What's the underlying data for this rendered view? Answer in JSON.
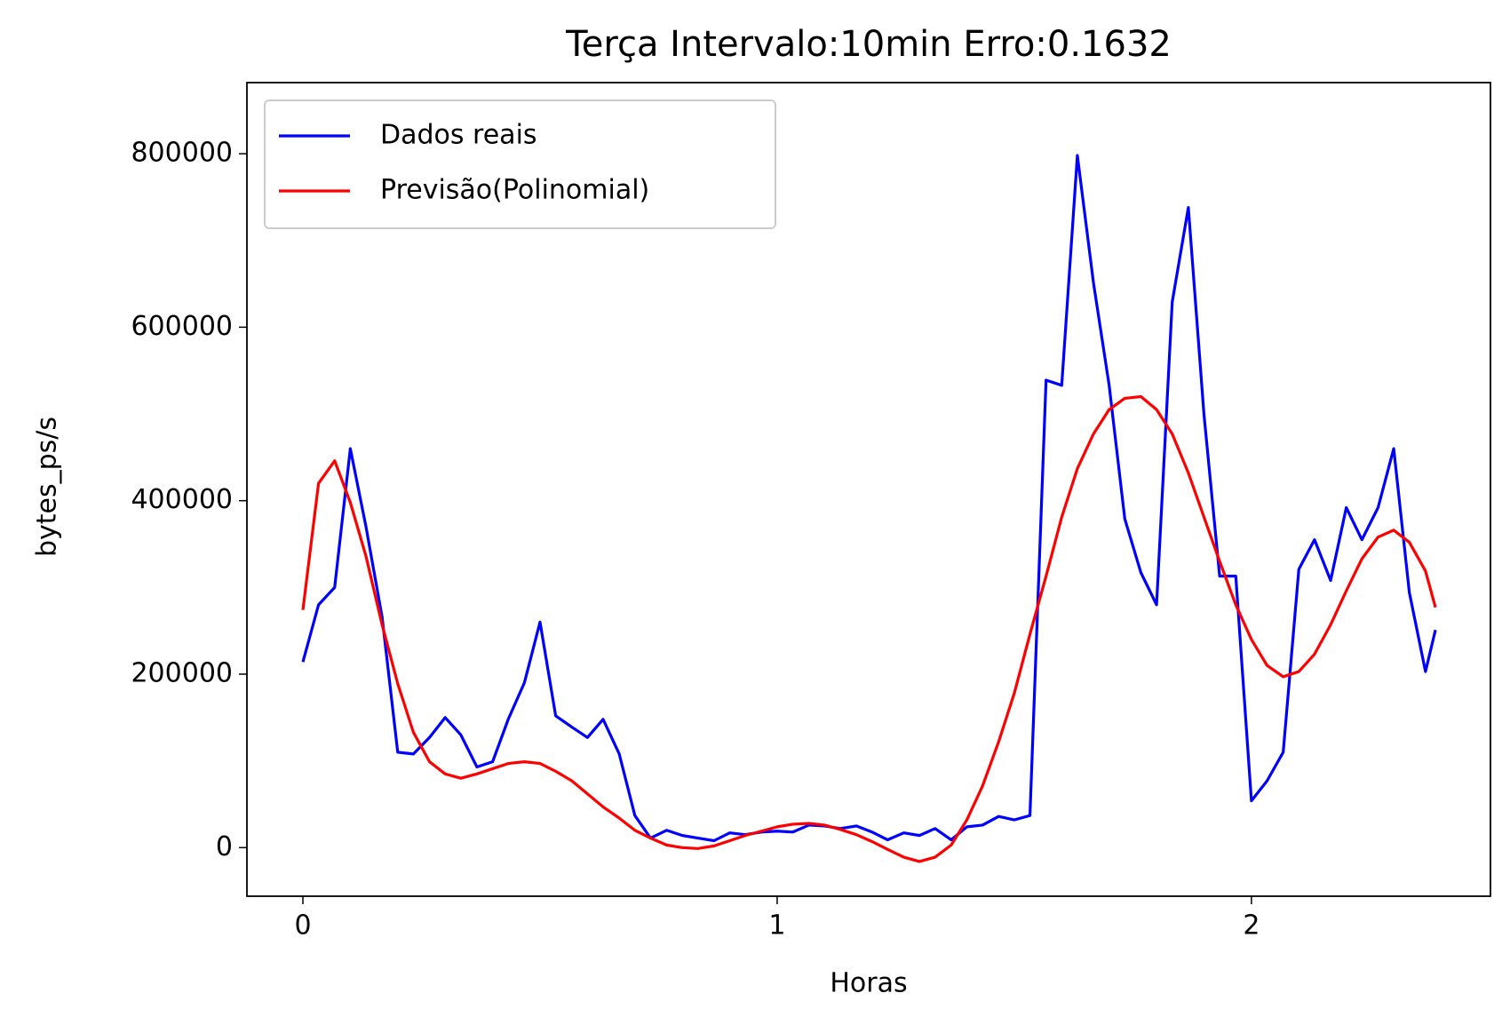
{
  "chart_data": {
    "type": "line",
    "title": "Terça Intervalo:10min Erro:0.1632",
    "x_label": "Horas",
    "y_label": "bytes_ps/s",
    "x": [
      0,
      0.033,
      0.067,
      0.1,
      0.133,
      0.167,
      0.2,
      0.233,
      0.267,
      0.3,
      0.333,
      0.367,
      0.4,
      0.433,
      0.467,
      0.5,
      0.533,
      0.567,
      0.6,
      0.633,
      0.667,
      0.7,
      0.733,
      0.767,
      0.8,
      0.833,
      0.867,
      0.9,
      0.933,
      0.967,
      1.0,
      1.033,
      1.067,
      1.1,
      1.133,
      1.167,
      1.2,
      1.233,
      1.267,
      1.3,
      1.333,
      1.367,
      1.4,
      1.433,
      1.467,
      1.5,
      1.533,
      1.567,
      1.6,
      1.633,
      1.667,
      1.7,
      1.733,
      1.767,
      1.8,
      1.833,
      1.867,
      1.9,
      1.933,
      1.967,
      2.0,
      2.033,
      2.067,
      2.1,
      2.133,
      2.167,
      2.2,
      2.233,
      2.267,
      2.3,
      2.333,
      2.367,
      2.388
    ],
    "series": [
      {
        "name": "Dados reais",
        "color": "#0000ff",
        "values": [
          214000,
          280000,
          300000,
          460000,
          370000,
          266000,
          110000,
          108000,
          127000,
          150000,
          130000,
          93000,
          99000,
          148000,
          190000,
          260000,
          152000,
          139000,
          127000,
          148000,
          108000,
          37000,
          11000,
          20000,
          14000,
          11000,
          8000,
          17000,
          15000,
          18000,
          19000,
          18000,
          26000,
          25000,
          22000,
          25000,
          18000,
          9000,
          17000,
          14000,
          22000,
          9000,
          24000,
          26000,
          36000,
          32000,
          37000,
          539000,
          533000,
          798000,
          651000,
          533000,
          379000,
          317000,
          280000,
          629000,
          738000,
          499000,
          313000,
          313000,
          54000,
          77000,
          110000,
          321000,
          355000,
          308000,
          392000,
          355000,
          392000,
          460000,
          294000,
          203000,
          251000
        ]
      },
      {
        "name": "Previsão(Polinomial)",
        "color": "#ff0000",
        "values": [
          274000,
          420000,
          446000,
          398000,
          336000,
          257000,
          189000,
          133000,
          99000,
          85000,
          80000,
          85000,
          91000,
          97000,
          99000,
          97000,
          88000,
          77000,
          62000,
          47000,
          34000,
          20000,
          11000,
          3000,
          0,
          -1000,
          2000,
          8000,
          14000,
          19000,
          24000,
          27000,
          28000,
          26000,
          21000,
          15000,
          7000,
          -2000,
          -11000,
          -16000,
          -11000,
          3000,
          32000,
          71000,
          122000,
          178000,
          246000,
          313000,
          381000,
          437000,
          477000,
          505000,
          518000,
          520000,
          505000,
          477000,
          432000,
          381000,
          330000,
          280000,
          240000,
          210000,
          197000,
          203000,
          223000,
          257000,
          296000,
          333000,
          358000,
          366000,
          352000,
          319000,
          277000
        ]
      }
    ],
    "xlim": [
      -0.118,
      2.504
    ],
    "ylim": [
      -56000,
      882000
    ],
    "xticks": [
      0,
      1,
      2
    ],
    "yticks": [
      0,
      200000,
      400000,
      600000,
      800000
    ],
    "grid": false,
    "legend": "upper left"
  }
}
